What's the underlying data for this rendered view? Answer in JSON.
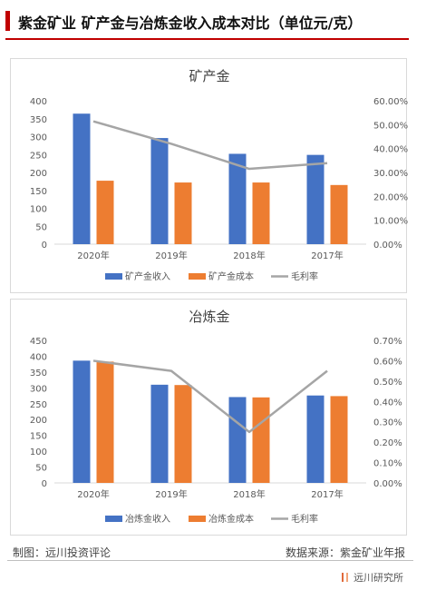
{
  "header": {
    "title": "紫金矿业 矿产金与冶炼金收入成本对比（单位元/克）"
  },
  "footer": {
    "left": "制图：远川投资评论",
    "right": "数据来源：紫金矿业年报",
    "brand": "远川研究所"
  },
  "colors": {
    "income": "#4472c4",
    "cost": "#ed7d31",
    "margin": "#a5a5a5",
    "accent": "#c00000"
  },
  "chart_data": [
    {
      "type": "bar",
      "title": "矿产金",
      "categories": [
        "2020年",
        "2019年",
        "2018年",
        "2017年"
      ],
      "series": [
        {
          "name": "矿产金收入",
          "type": "bar",
          "axis": "left",
          "values": [
            364,
            296,
            252,
            249
          ]
        },
        {
          "name": "矿产金成本",
          "type": "bar",
          "axis": "left",
          "values": [
            177,
            172,
            172,
            165
          ]
        },
        {
          "name": "毛利率",
          "type": "line",
          "axis": "right",
          "values": [
            51.4,
            42.0,
            31.5,
            33.9
          ]
        }
      ],
      "ylim": [
        0,
        400
      ],
      "yticks": [
        "0",
        "50",
        "100",
        "150",
        "200",
        "250",
        "300",
        "350",
        "400"
      ],
      "y2lim": [
        0,
        60
      ],
      "y2ticks": [
        "0.00%",
        "10.00%",
        "20.00%",
        "30.00%",
        "40.00%",
        "50.00%",
        "60.00%"
      ],
      "legend": "bottom",
      "grid": false
    },
    {
      "type": "bar",
      "title": "冶炼金",
      "categories": [
        "2020年",
        "2019年",
        "2018年",
        "2017年"
      ],
      "series": [
        {
          "name": "冶炼金收入",
          "type": "bar",
          "axis": "left",
          "values": [
            386,
            310,
            271,
            276
          ]
        },
        {
          "name": "冶炼金成本",
          "type": "bar",
          "axis": "left",
          "values": [
            383,
            309,
            270,
            274
          ]
        },
        {
          "name": "毛利率",
          "type": "line",
          "axis": "right",
          "values": [
            0.6,
            0.55,
            0.25,
            0.55
          ]
        }
      ],
      "ylim": [
        0,
        450
      ],
      "yticks": [
        "0",
        "50",
        "100",
        "150",
        "200",
        "250",
        "300",
        "350",
        "400",
        "450"
      ],
      "y2lim": [
        0,
        0.7
      ],
      "y2ticks": [
        "0.00%",
        "0.10%",
        "0.20%",
        "0.30%",
        "0.40%",
        "0.50%",
        "0.60%",
        "0.70%"
      ],
      "legend": "bottom",
      "grid": false
    }
  ]
}
